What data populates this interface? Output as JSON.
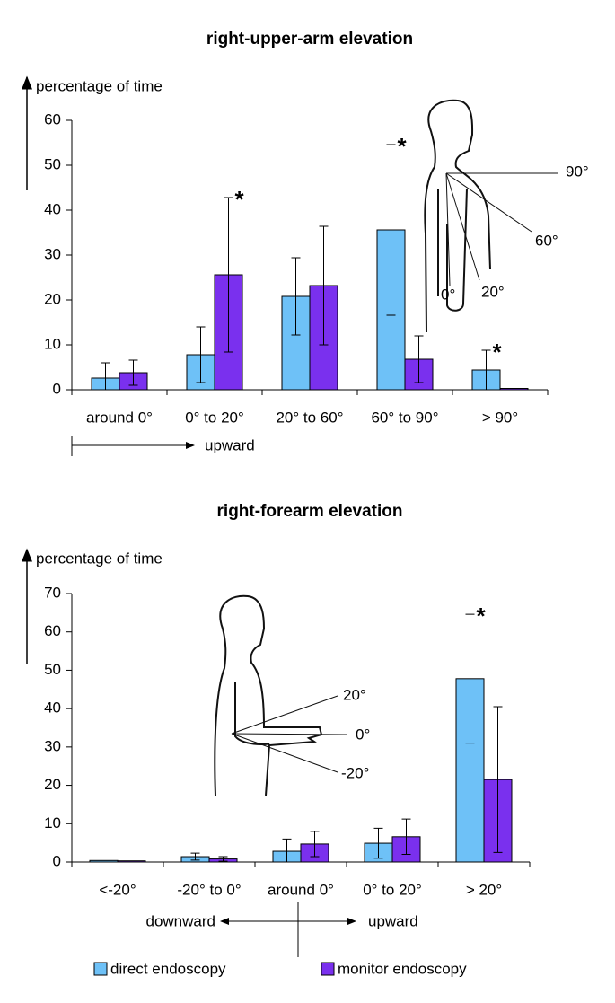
{
  "chart_data": [
    {
      "type": "bar",
      "title": "right-upper-arm elevation",
      "y_label": "percentage of time",
      "categories": [
        "around 0°",
        "0° to 20°",
        "20° to 60°",
        "60° to 90°",
        "> 90°"
      ],
      "series": [
        {
          "color": "#6ec1f7",
          "values": [
            2.6,
            7.8,
            20.8,
            35.6,
            4.4
          ],
          "errors": [
            3.4,
            6.2,
            8.6,
            19.0,
            4.4
          ]
        },
        {
          "color": "#7a30ee",
          "values": [
            3.8,
            25.6,
            23.2,
            6.8,
            0.3
          ],
          "errors": [
            2.8,
            17.2,
            13.2,
            5.2,
            0
          ]
        }
      ],
      "ylim": [
        0,
        60
      ],
      "yticks": [
        0,
        10,
        20,
        30,
        40,
        50,
        60
      ],
      "annotations": [
        {
          "text": "*",
          "category": 1,
          "series": 1
        },
        {
          "text": "*",
          "category": 3,
          "series": 0
        },
        {
          "text": "*",
          "category": 4,
          "series": 0
        }
      ],
      "direction_labels": [
        "upward"
      ],
      "figure_labels": [
        "90°",
        "60°",
        "20°",
        "0°"
      ]
    },
    {
      "type": "bar",
      "title": "right-forearm elevation",
      "y_label": "percentage of time",
      "categories": [
        "<-20°",
        "-20° to 0°",
        "around 0°",
        "0° to 20°",
        "> 20°"
      ],
      "series": [
        {
          "name": "direct endoscopy",
          "color": "#6ec1f7",
          "values": [
            0.4,
            1.4,
            2.8,
            4.9,
            47.8
          ],
          "errors": [
            0,
            0.9,
            3.2,
            3.9,
            16.8
          ]
        },
        {
          "name": "monitor endoscopy",
          "color": "#7a30ee",
          "values": [
            0.3,
            0.8,
            4.7,
            6.6,
            21.5
          ],
          "errors": [
            0,
            0.6,
            3.3,
            4.6,
            19.0
          ]
        }
      ],
      "ylim": [
        0,
        70
      ],
      "yticks": [
        0,
        10,
        20,
        30,
        40,
        50,
        60,
        70
      ],
      "annotations": [
        {
          "text": "*",
          "category": 4,
          "series": 0
        }
      ],
      "direction_labels": [
        "downward",
        "upward"
      ],
      "figure_labels": [
        "20°",
        "0°",
        "-20°"
      ]
    }
  ]
}
